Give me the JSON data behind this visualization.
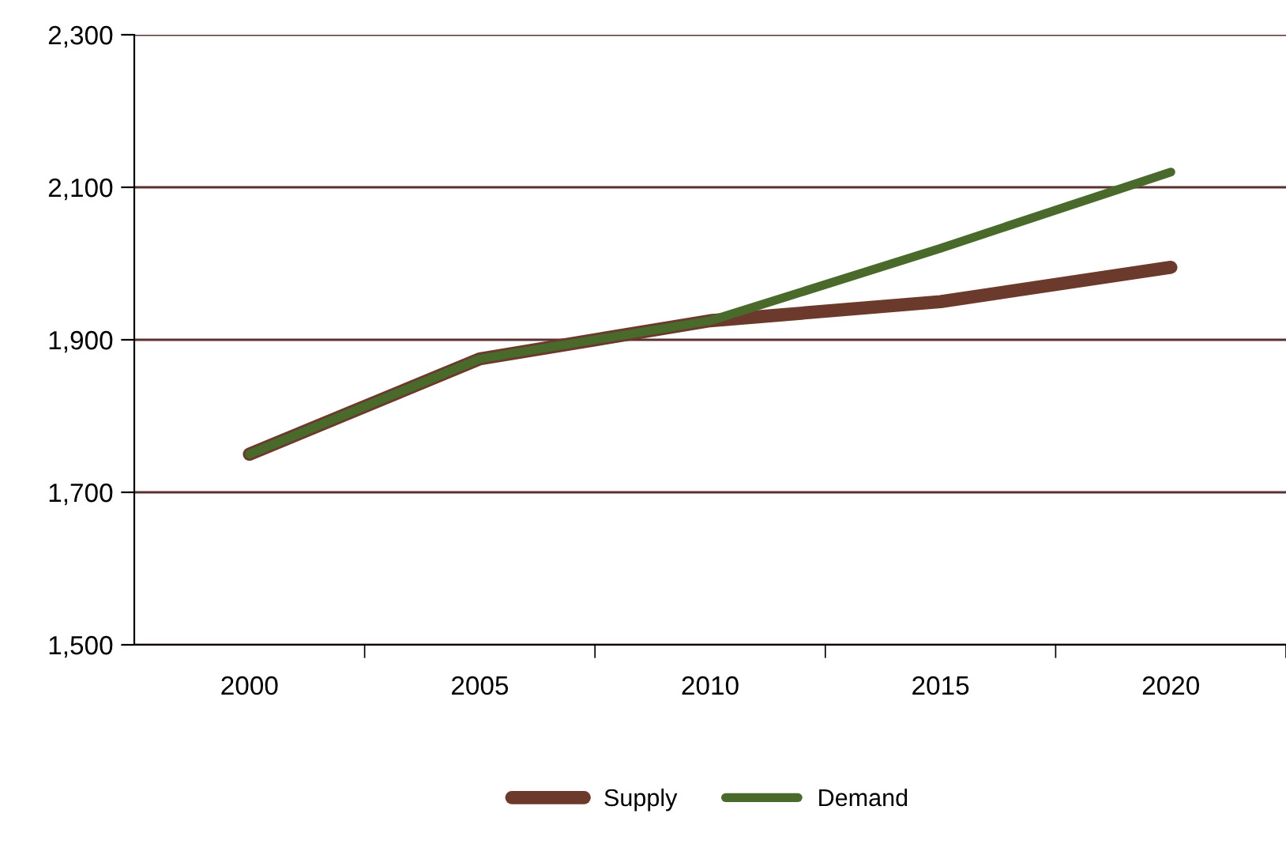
{
  "chart_data": {
    "type": "line",
    "categories": [
      "2000",
      "2005",
      "2010",
      "2015",
      "2020"
    ],
    "series": [
      {
        "name": "Supply",
        "color": "#6b3a2c",
        "values": [
          1750,
          1875,
          1925,
          1950,
          1995
        ]
      },
      {
        "name": "Demand",
        "color": "#4a6a2c",
        "values": [
          1750,
          1875,
          1925,
          2020,
          2120
        ]
      }
    ],
    "ylim": [
      1500,
      2300
    ],
    "yticks": [
      {
        "value": 1500,
        "label": "1,500"
      },
      {
        "value": 1700,
        "label": "1,700"
      },
      {
        "value": 1900,
        "label": "1,900"
      },
      {
        "value": 2100,
        "label": "2,100"
      },
      {
        "value": 2300,
        "label": "2,300"
      }
    ],
    "grid": "y",
    "legend": "bottom",
    "line_style": "solid",
    "marker": "none"
  }
}
